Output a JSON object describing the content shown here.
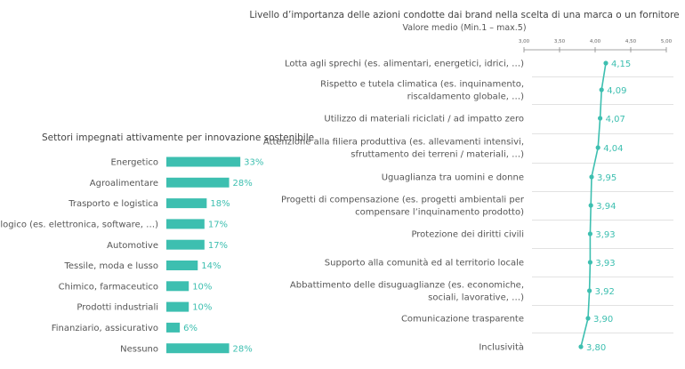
{
  "chart_data": [
    {
      "type": "bar",
      "title": "Settori impegnati attivamente per innovazione sostenibile",
      "categories": [
        "Energetico",
        "Agroalimentare",
        "Trasporto e logistica",
        "Tecnologico (es. elettronica, software, …)",
        "Automotive",
        "Tessile, moda e lusso",
        "Chimico, farmaceutico",
        "Prodotti industriali",
        "Finanziario, assicurativo",
        "Nessuno"
      ],
      "values": [
        33,
        28,
        18,
        17,
        17,
        14,
        10,
        10,
        6,
        28
      ],
      "value_labels": [
        "33%",
        "28%",
        "18%",
        "17%",
        "17%",
        "14%",
        "10%",
        "10%",
        "6%",
        "28%"
      ],
      "color": "#3dbfb0",
      "orientation": "horizontal",
      "grid": false
    },
    {
      "type": "line",
      "title": "Livello d’importanza delle azioni condotte dai brand nella scelta di una marca o un fornitore",
      "subtitle": "Valore medio (Min.1 – max.5)",
      "categories": [
        [
          "Lotta agli sprechi (es. alimentari, energetici, idrici, …)"
        ],
        [
          "Rispetto e tutela climatica (es. inquinamento,",
          "riscaldamento globale, …)"
        ],
        [
          "Utilizzo di materiali riciclati / ad impatto zero"
        ],
        [
          "Attenzione alla filiera produttiva (es. allevamenti intensivi,",
          "sfruttamento dei terreni / materiali, …)"
        ],
        [
          "Uguaglianza tra uomini e donne"
        ],
        [
          "Progetti di compensazione (es. progetti ambientali per",
          "compensare l’inquinamento prodotto)"
        ],
        [
          "Protezione dei diritti civili"
        ],
        [
          "Supporto alla comunità ed al territorio locale"
        ],
        [
          "Abbattimento delle disuguaglianze (es. economiche,",
          "sociali, lavorative, …)"
        ],
        [
          "Comunicazione trasparente"
        ],
        [
          "Inclusività"
        ]
      ],
      "values": [
        4.15,
        4.09,
        4.07,
        4.04,
        3.95,
        3.94,
        3.93,
        3.93,
        3.92,
        3.9,
        3.8
      ],
      "value_labels": [
        "4,15",
        "4,09",
        "4,07",
        "4,04",
        "3,95",
        "3,94",
        "3,93",
        "3,93",
        "3,92",
        "3,90",
        "3,80"
      ],
      "axis_ticks": [
        3.0,
        3.5,
        4.0,
        4.5,
        5.0
      ],
      "axis_tick_labels": [
        "3,00",
        "3,50",
        "4,00",
        "4,50",
        "5,00"
      ],
      "xlim": [
        3.0,
        5.0
      ],
      "axis_position": "top",
      "color": "#3dbfb0",
      "grid": false
    }
  ]
}
